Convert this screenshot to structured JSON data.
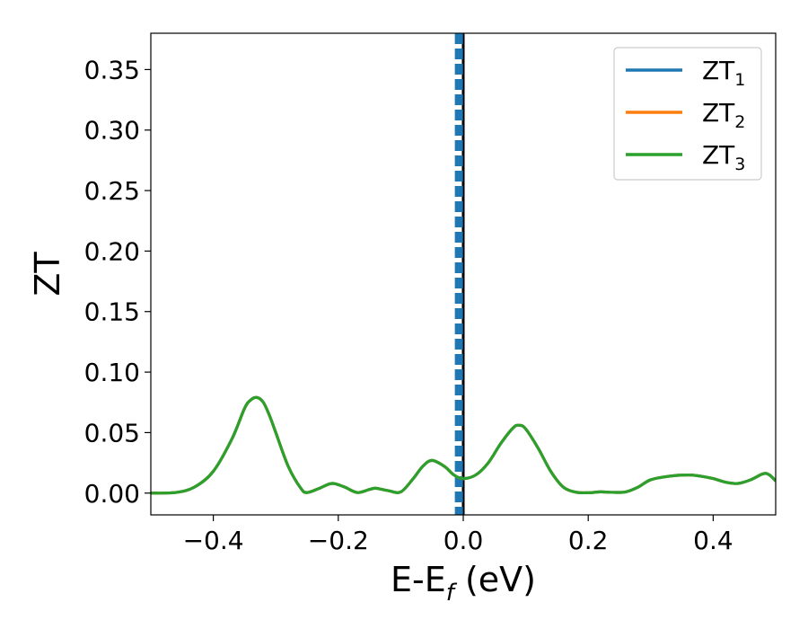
{
  "chart_data": {
    "type": "line",
    "xlabel_main": "E-E",
    "xlabel_sub": "f",
    "xlabel_unit": " (eV)",
    "ylabel": "ZT",
    "xlim": [
      -0.5,
      0.5
    ],
    "ylim": [
      -0.018,
      0.38
    ],
    "x_ticks": [
      {
        "value": -0.4,
        "label": "−0.4"
      },
      {
        "value": -0.2,
        "label": "−0.2"
      },
      {
        "value": 0.0,
        "label": "0.0"
      },
      {
        "value": 0.2,
        "label": "0.2"
      },
      {
        "value": 0.4,
        "label": "0.4"
      }
    ],
    "y_ticks": [
      {
        "value": 0.0,
        "label": "0.00"
      },
      {
        "value": 0.05,
        "label": "0.05"
      },
      {
        "value": 0.1,
        "label": "0.10"
      },
      {
        "value": 0.15,
        "label": "0.15"
      },
      {
        "value": 0.2,
        "label": "0.20"
      },
      {
        "value": 0.25,
        "label": "0.25"
      },
      {
        "value": 0.3,
        "label": "0.30"
      },
      {
        "value": 0.35,
        "label": "0.35"
      }
    ],
    "grid": false,
    "legend_position": "top-right",
    "vertical_lines": [
      {
        "x": 0.0,
        "color": "#000000",
        "style": "solid"
      },
      {
        "x": -0.007,
        "color": "#1f77b4",
        "style": "dashed"
      }
    ],
    "x": [
      -0.5,
      -0.46,
      -0.43,
      -0.4,
      -0.37,
      -0.35,
      -0.34,
      -0.33,
      -0.32,
      -0.31,
      -0.3,
      -0.28,
      -0.26,
      -0.25,
      -0.23,
      -0.21,
      -0.19,
      -0.17,
      -0.15,
      -0.14,
      -0.12,
      -0.1,
      -0.08,
      -0.065,
      -0.05,
      -0.03,
      -0.015,
      0.0,
      0.02,
      0.04,
      0.06,
      0.08,
      0.09,
      0.1,
      0.12,
      0.14,
      0.16,
      0.18,
      0.2,
      0.22,
      0.24,
      0.26,
      0.28,
      0.3,
      0.33,
      0.36,
      0.38,
      0.4,
      0.42,
      0.44,
      0.46,
      0.48,
      0.49,
      0.5
    ],
    "series": [
      {
        "name_main": "ZT",
        "name_sub": "1",
        "color": "#1f77b4",
        "values": [
          0.0,
          0.0005,
          0.005,
          0.018,
          0.045,
          0.07,
          0.077,
          0.079,
          0.075,
          0.064,
          0.05,
          0.022,
          0.004,
          0.0005,
          0.004,
          0.008,
          0.005,
          0.0005,
          0.003,
          0.004,
          0.002,
          0.001,
          0.012,
          0.022,
          0.027,
          0.022,
          0.015,
          0.012,
          0.015,
          0.025,
          0.041,
          0.054,
          0.056,
          0.053,
          0.037,
          0.018,
          0.005,
          0.0008,
          0.0003,
          0.001,
          0.0006,
          0.001,
          0.005,
          0.011,
          0.014,
          0.015,
          0.014,
          0.012,
          0.009,
          0.008,
          0.011,
          0.016,
          0.015,
          0.01
        ]
      },
      {
        "name_main": "ZT",
        "name_sub": "2",
        "color": "#ff7f0e",
        "values": [
          0.0,
          0.0005,
          0.005,
          0.018,
          0.045,
          0.07,
          0.077,
          0.079,
          0.075,
          0.064,
          0.05,
          0.022,
          0.004,
          0.0005,
          0.004,
          0.008,
          0.005,
          0.0005,
          0.003,
          0.004,
          0.002,
          0.001,
          0.012,
          0.022,
          0.027,
          0.022,
          0.015,
          0.012,
          0.015,
          0.025,
          0.041,
          0.054,
          0.056,
          0.053,
          0.037,
          0.018,
          0.005,
          0.0008,
          0.0003,
          0.001,
          0.0006,
          0.001,
          0.005,
          0.011,
          0.014,
          0.015,
          0.014,
          0.012,
          0.009,
          0.008,
          0.011,
          0.016,
          0.015,
          0.01
        ]
      },
      {
        "name_main": "ZT",
        "name_sub": "3",
        "color": "#2ca02c",
        "values": [
          0.0,
          0.0005,
          0.005,
          0.018,
          0.045,
          0.07,
          0.077,
          0.079,
          0.075,
          0.064,
          0.05,
          0.022,
          0.004,
          0.0005,
          0.004,
          0.008,
          0.005,
          0.0005,
          0.003,
          0.004,
          0.002,
          0.001,
          0.012,
          0.022,
          0.027,
          0.022,
          0.015,
          0.012,
          0.015,
          0.025,
          0.041,
          0.054,
          0.056,
          0.053,
          0.037,
          0.018,
          0.005,
          0.0008,
          0.0003,
          0.001,
          0.0006,
          0.001,
          0.005,
          0.011,
          0.014,
          0.015,
          0.014,
          0.012,
          0.009,
          0.008,
          0.011,
          0.016,
          0.015,
          0.01
        ]
      }
    ]
  }
}
